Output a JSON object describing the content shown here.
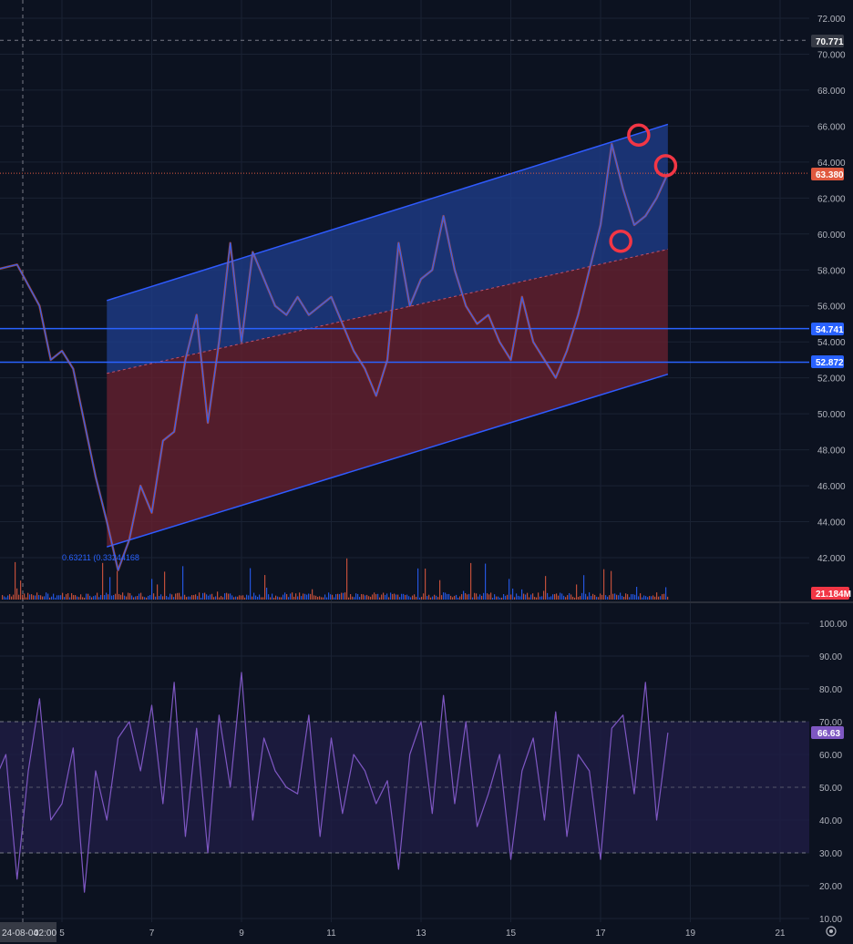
{
  "colors": {
    "background": "#0c1220",
    "grid": "#1a2233",
    "price_up": "#2962ff",
    "price_down": "#e0593f",
    "channel_line": "#2f5bff",
    "channel_upper_fill": "#1f3f8f",
    "channel_lower_fill": "#6b2230",
    "horizontal_line": "#2962ff",
    "rsi_line": "#7e57c2",
    "rsi_band": "#1f1d45",
    "circle_marker": "#f23645",
    "last_price_badge": "#e0593f",
    "level_badge": "#2962ff",
    "crosshair_badge": "#363a45",
    "volume_badge": "#f23645",
    "rsi_badge": "#7e57c2"
  },
  "chart_data": [
    {
      "type": "line",
      "pane": "price",
      "ylim": [
        41.2,
        73.3
      ],
      "y_ticks": [
        "72.000",
        "70.000",
        "68.000",
        "66.000",
        "64.000",
        "62.000",
        "60.000",
        "58.000",
        "56.000",
        "54.000",
        "52.000",
        "50.000",
        "48.000",
        "46.000",
        "44.000",
        "42.000"
      ],
      "x_ticks": [
        "5",
        "7",
        "9",
        "11",
        "13",
        "15",
        "17",
        "19",
        "21"
      ],
      "x_date_label": "24-08-04",
      "x_time_label": "02:00",
      "x": [
        3.5,
        4.0,
        4.5,
        4.75,
        5.0,
        5.25,
        5.5,
        5.75,
        6.0,
        6.25,
        6.5,
        6.75,
        7.0,
        7.25,
        7.5,
        7.75,
        8.0,
        8.25,
        8.5,
        8.75,
        9.0,
        9.25,
        9.5,
        9.75,
        10.0,
        10.25,
        10.5,
        10.75,
        11.0,
        11.25,
        11.5,
        11.75,
        12.0,
        12.25,
        12.5,
        12.75,
        13.0,
        13.25,
        13.5,
        13.75,
        14.0,
        14.25,
        14.5,
        14.75,
        15.0,
        15.25,
        15.5,
        15.75,
        16.0,
        16.25,
        16.5,
        16.75,
        17.0,
        17.25,
        17.5,
        17.75,
        18.0,
        18.25,
        18.5
      ],
      "values": [
        58.0,
        58.3,
        56.0,
        53.0,
        53.5,
        52.5,
        49.5,
        46.5,
        44.0,
        41.3,
        43.0,
        46.0,
        44.5,
        48.5,
        49.0,
        53.0,
        55.5,
        49.5,
        54.0,
        59.5,
        54.0,
        59.0,
        57.5,
        56.0,
        55.5,
        56.5,
        55.5,
        56.0,
        56.5,
        55.0,
        53.5,
        52.5,
        51.0,
        53.0,
        59.5,
        56.0,
        57.5,
        58.0,
        61.0,
        58.0,
        56.0,
        55.0,
        55.5,
        54.0,
        53.0,
        56.5,
        54.0,
        53.0,
        52.0,
        53.5,
        55.5,
        58.0,
        60.5,
        65.0,
        62.5,
        60.5,
        61.0,
        62.0,
        63.38
      ],
      "last_price": "63.380",
      "crosshair_price": "70.771",
      "levels": [
        "54.741",
        "52.872"
      ],
      "volume_last": "21.184M",
      "fib_label": "0.63211 (0.33244168"
    },
    {
      "type": "line",
      "pane": "rsi",
      "ylim": [
        8,
        108
      ],
      "y_ticks": [
        "100.00",
        "90.00",
        "80.00",
        "70.00",
        "60.00",
        "50.00",
        "40.00",
        "30.00",
        "20.00",
        "10.00"
      ],
      "band": [
        30,
        70
      ],
      "x": [
        3.5,
        3.75,
        4.0,
        4.25,
        4.5,
        4.75,
        5.0,
        5.25,
        5.5,
        5.75,
        6.0,
        6.25,
        6.5,
        6.75,
        7.0,
        7.25,
        7.5,
        7.75,
        8.0,
        8.25,
        8.5,
        8.75,
        9.0,
        9.25,
        9.5,
        9.75,
        10.0,
        10.25,
        10.5,
        10.75,
        11.0,
        11.25,
        11.5,
        11.75,
        12.0,
        12.25,
        12.5,
        12.75,
        13.0,
        13.25,
        13.5,
        13.75,
        14.0,
        14.25,
        14.5,
        14.75,
        15.0,
        15.25,
        15.5,
        15.75,
        16.0,
        16.25,
        16.5,
        16.75,
        17.0,
        17.25,
        17.5,
        17.75,
        18.0,
        18.25,
        18.5
      ],
      "values": [
        52,
        60,
        22,
        55,
        77,
        40,
        45,
        62,
        18,
        55,
        40,
        65,
        70,
        55,
        75,
        45,
        82,
        35,
        68,
        30,
        72,
        50,
        85,
        40,
        65,
        55,
        50,
        48,
        72,
        35,
        65,
        42,
        60,
        55,
        45,
        52,
        25,
        60,
        70,
        42,
        78,
        45,
        70,
        38,
        48,
        60,
        28,
        55,
        65,
        40,
        73,
        35,
        60,
        55,
        28,
        68,
        72,
        48,
        82,
        40,
        66.63
      ],
      "last_value": "66.63"
    }
  ]
}
